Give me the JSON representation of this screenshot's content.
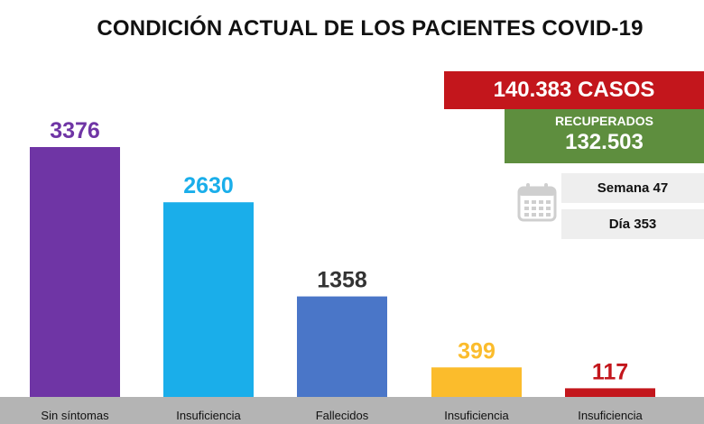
{
  "title": "CONDICIÓN ACTUAL DE LOS PACIENTES COVID-19",
  "summary": {
    "cases_text": "140.383 CASOS",
    "recovered_label": "RECUPERADOS",
    "recovered_value": "132.503",
    "week_text": "Semana 47",
    "day_text": "Día 353",
    "cases_color": "#c3161c",
    "recovered_color": "#5e8e3e"
  },
  "icons": {
    "calendar": "calendar-icon"
  },
  "chart_data": {
    "type": "bar",
    "categories": [
      "Sin síntomas",
      "Insuficiencia",
      "Fallecidos",
      "Insuficiencia",
      "Insuficiencia"
    ],
    "values": [
      3376,
      2630,
      1358,
      399,
      117
    ],
    "value_labels": [
      "3376",
      "2630",
      "1358",
      "399",
      "117"
    ],
    "bar_colors": [
      "#6f35a5",
      "#1aaeea",
      "#4a76c8",
      "#fbbc2c",
      "#c3161c"
    ],
    "label_colors": [
      "#6f35a5",
      "#1aaeea",
      "#333333",
      "#fbbc2c",
      "#c3161c"
    ],
    "baseline_color": "#b4b4b4",
    "ylim": [
      0,
      3376
    ],
    "grid": false,
    "legend": "none"
  }
}
